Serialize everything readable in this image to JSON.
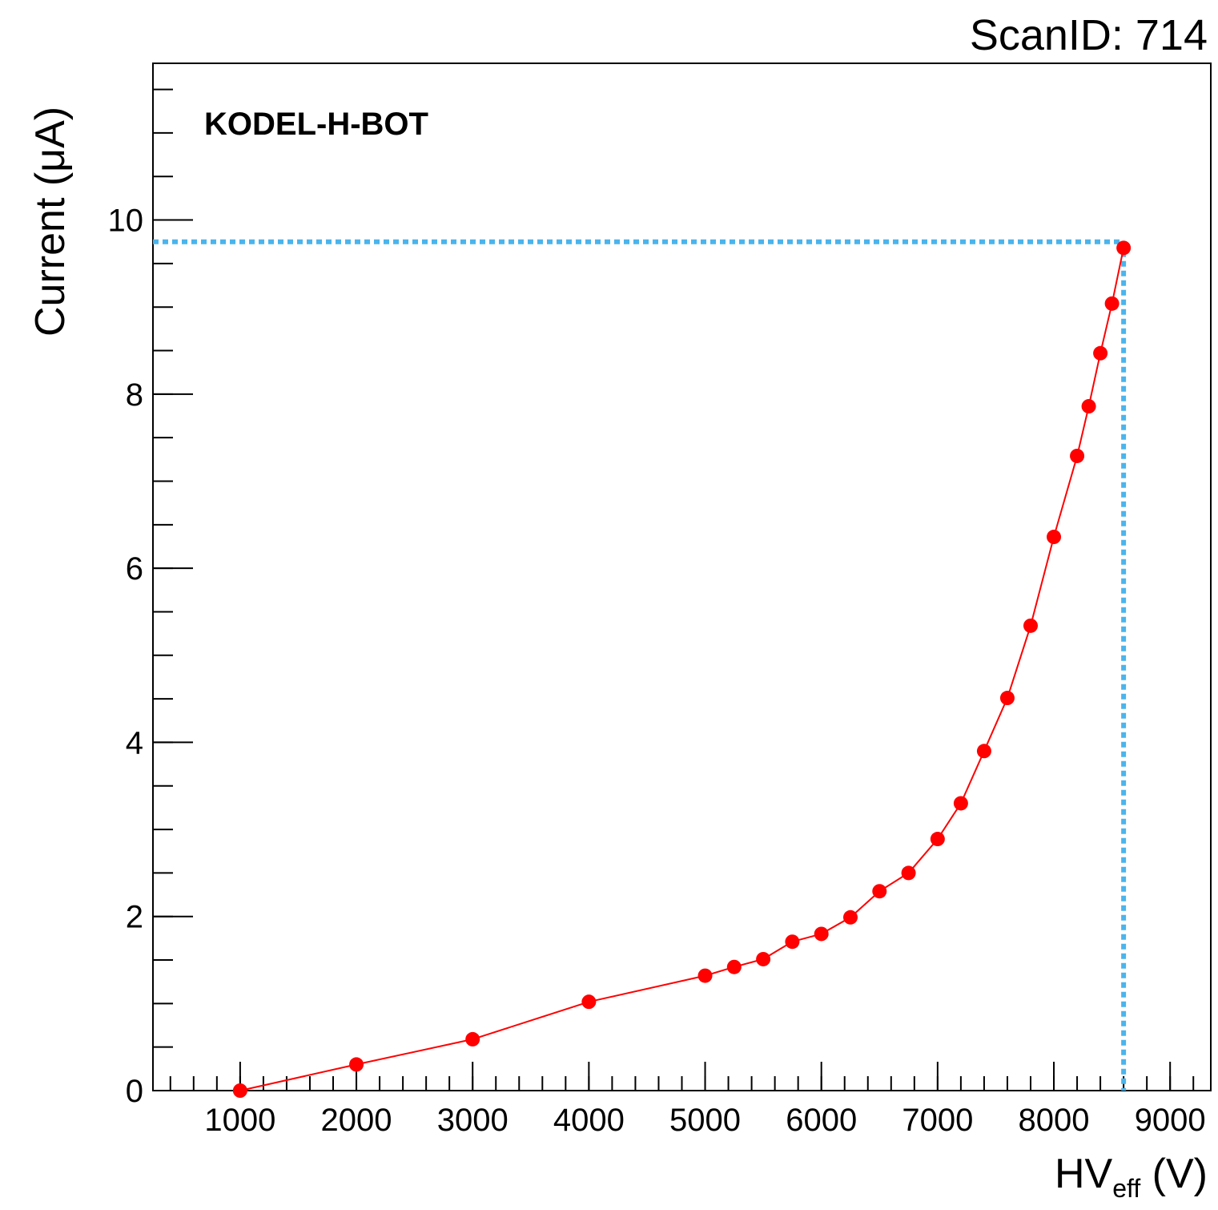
{
  "header": {
    "scan_id": "ScanID: 714"
  },
  "chart_data": {
    "type": "line",
    "label": "KODEL-H-BOT",
    "xlabel_main": "HV",
    "xlabel_sub": "eff",
    "xlabel_unit": " (V)",
    "ylabel": "Current (μA)",
    "xlim": [
      250,
      9350
    ],
    "ylim": [
      0,
      11.8
    ],
    "x_ticks": [
      1000,
      2000,
      3000,
      4000,
      5000,
      6000,
      7000,
      8000,
      9000
    ],
    "y_ticks": [
      0,
      2,
      4,
      6,
      8,
      10
    ],
    "x_tick_labels": [
      "1000",
      "2000",
      "3000",
      "4000",
      "5000",
      "6000",
      "7000",
      "8000",
      "9000"
    ],
    "y_tick_labels": [
      "0",
      "2",
      "4",
      "6",
      "8",
      "10"
    ],
    "x_minor_step": 200,
    "y_minor_step": 0.5,
    "series": [
      {
        "color": "#ff0000",
        "x": [
          1000,
          2000,
          3000,
          4000,
          5000,
          5250,
          5500,
          5750,
          6000,
          6250,
          6500,
          6750,
          7000,
          7200,
          7400,
          7600,
          7800,
          8000,
          8200,
          8300,
          8400,
          8500,
          8600
        ],
        "y": [
          0.0,
          0.3,
          0.59,
          1.02,
          1.32,
          1.42,
          1.51,
          1.71,
          1.8,
          1.99,
          2.29,
          2.5,
          2.89,
          3.3,
          3.9,
          4.51,
          5.34,
          6.36,
          7.29,
          7.86,
          8.47,
          9.04,
          9.68
        ]
      }
    ],
    "reference_lines": {
      "color": "#4ab4ec",
      "x": 8600,
      "y": 9.75
    }
  }
}
